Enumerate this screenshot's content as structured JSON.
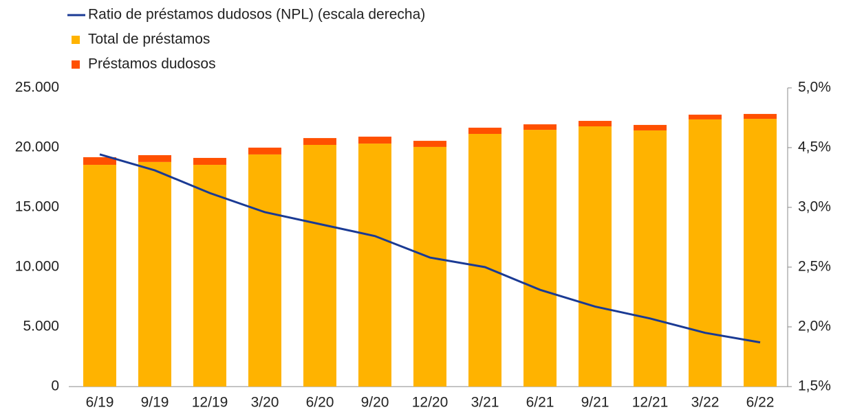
{
  "chart_data": {
    "type": "bar",
    "categories": [
      "6/19",
      "9/19",
      "12/19",
      "3/20",
      "6/20",
      "9/20",
      "12/20",
      "3/21",
      "6/21",
      "9/21",
      "12/21",
      "3/22",
      "6/22"
    ],
    "series": [
      {
        "name": "Total de préstamos",
        "color": "#FFB300",
        "values": [
          18560,
          18800,
          18560,
          19430,
          20230,
          20340,
          20060,
          21150,
          21490,
          21780,
          21440,
          22360,
          22410
        ]
      },
      {
        "name": "Préstamos dudosos",
        "color": "#FF5000",
        "values": [
          640,
          570,
          580,
          570,
          570,
          580,
          510,
          520,
          460,
          460,
          460,
          400,
          410
        ]
      },
      {
        "name": "Ratio de préstamos dudosos (NPL) (escala derecha)",
        "color": "#1A3A94",
        "axis": "y2",
        "type": "line",
        "values": [
          4.33,
          3.93,
          3.36,
          2.96,
          2.86,
          2.76,
          2.58,
          2.5,
          2.31,
          2.17,
          2.07,
          1.95,
          1.87
        ]
      }
    ],
    "ylim": [
      0,
      25000
    ],
    "yticks": [
      0,
      {
        "value": 5000,
        "label": "5.000"
      },
      {
        "value": 10000,
        "label": "10.000"
      },
      {
        "value": 15000,
        "label": "15.000"
      },
      {
        "value": 20000,
        "label": "20.000"
      },
      {
        "value": 25000,
        "label": "25.000"
      }
    ],
    "y2lim": [
      1.5,
      5.0
    ],
    "y2ticks": [
      {
        "value": 1.5,
        "label": "1,5%"
      },
      {
        "value": 2.0,
        "label": "2,0%"
      },
      {
        "value": 2.5,
        "label": "2,5%"
      },
      {
        "value": 3.0,
        "label": "3,0%"
      },
      {
        "value": 4.5,
        "label": "4,5%"
      },
      {
        "value": 5.0,
        "label": "5,0%"
      }
    ],
    "stacked": true,
    "legend": "top-left"
  }
}
